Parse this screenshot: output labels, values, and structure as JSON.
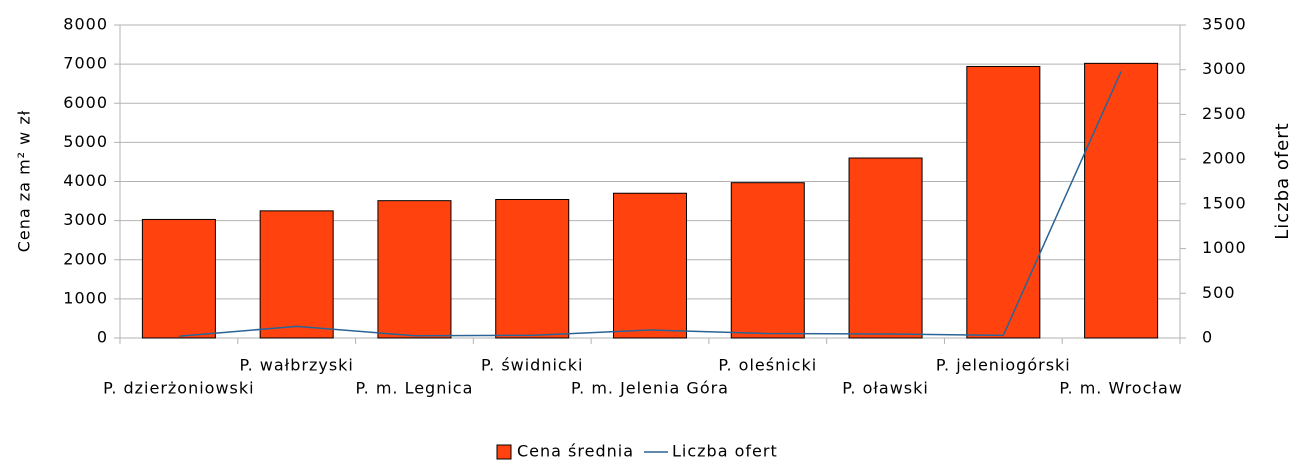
{
  "chart_data": {
    "type": "bar_line",
    "y_label": "Cena za m² w zł",
    "y2_label": "Liczba ofert",
    "categories": [
      "P. dzierżoniowski",
      "P. wałbrzyski",
      "P. m. Legnica",
      "P. świdnicki",
      "P. m. Jelenia Góra",
      "P. oleśnicki",
      "P. oławski",
      "P. jeleniogórski",
      "P. m. Wrocław"
    ],
    "series": [
      {
        "name": "Cena średnia",
        "color": "#ff420e",
        "type": "bar",
        "values": [
          3030,
          3250,
          3510,
          3540,
          3700,
          3970,
          4600,
          6940,
          7020
        ]
      },
      {
        "name": "Liczba ofert",
        "color": "#2a6496",
        "type": "line",
        "axis": "y2",
        "values": [
          20,
          130,
          25,
          30,
          90,
          50,
          45,
          30,
          2980
        ]
      }
    ],
    "ylim": [
      0,
      8000
    ],
    "yticks": [
      0,
      1000,
      2000,
      3000,
      4000,
      5000,
      6000,
      7000,
      8000
    ],
    "y2lim": [
      0,
      3500
    ],
    "y2ticks": [
      0,
      500,
      1000,
      1500,
      2000,
      2500,
      3000,
      3500
    ],
    "grid": true,
    "legend": "bottom"
  }
}
